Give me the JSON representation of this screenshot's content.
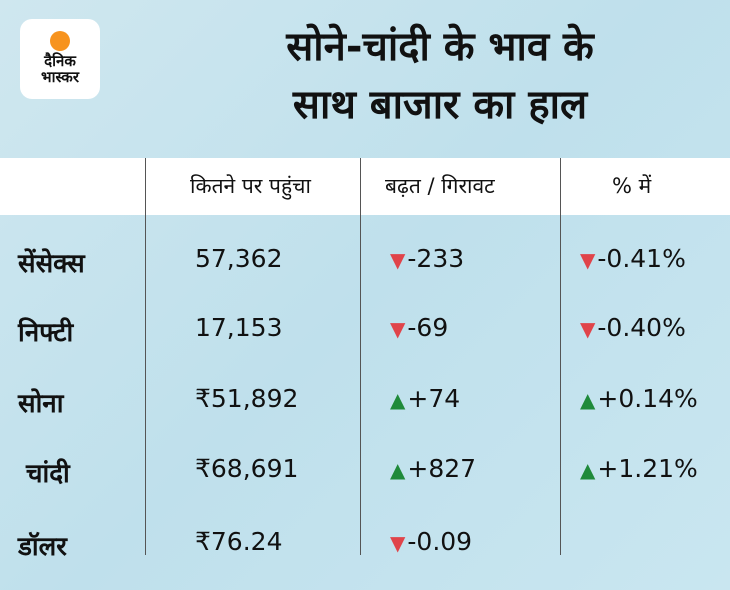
{
  "brand": {
    "line1": "दैनिक",
    "line2": "भास्कर",
    "sun_color": "#f7931e"
  },
  "title": {
    "line1": "सोने-चांदी के भाव के",
    "line2": "साथ बाजार का हाल"
  },
  "headers": [
    "",
    "कितने पर पहुंचा",
    "बढ़त / गिरावट",
    "% में"
  ],
  "rows": [
    {
      "name": "सेंसेक्स",
      "value": "57,362",
      "change": "-233",
      "pct": "-0.41%",
      "dir": "down",
      "pct_dir": "down"
    },
    {
      "name": "निफ्टी",
      "value": "17,153",
      "change": "-69",
      "pct": "-0.40%",
      "dir": "down",
      "pct_dir": "down"
    },
    {
      "name": "सोना",
      "value": "₹51,892",
      "change": "+74",
      "pct": "+0.14%",
      "dir": "up",
      "pct_dir": "up"
    },
    {
      "name": "चांदी",
      "value": "₹68,691",
      "change": "+827",
      "pct": "+1.21%",
      "dir": "up",
      "pct_dir": "up"
    },
    {
      "name": "डॉलर",
      "value": "₹76.24",
      "change": "-0.09",
      "pct": "",
      "dir": "down",
      "pct_dir": ""
    }
  ],
  "colors": {
    "up": "#1f8a3a",
    "down": "#e0444a"
  }
}
